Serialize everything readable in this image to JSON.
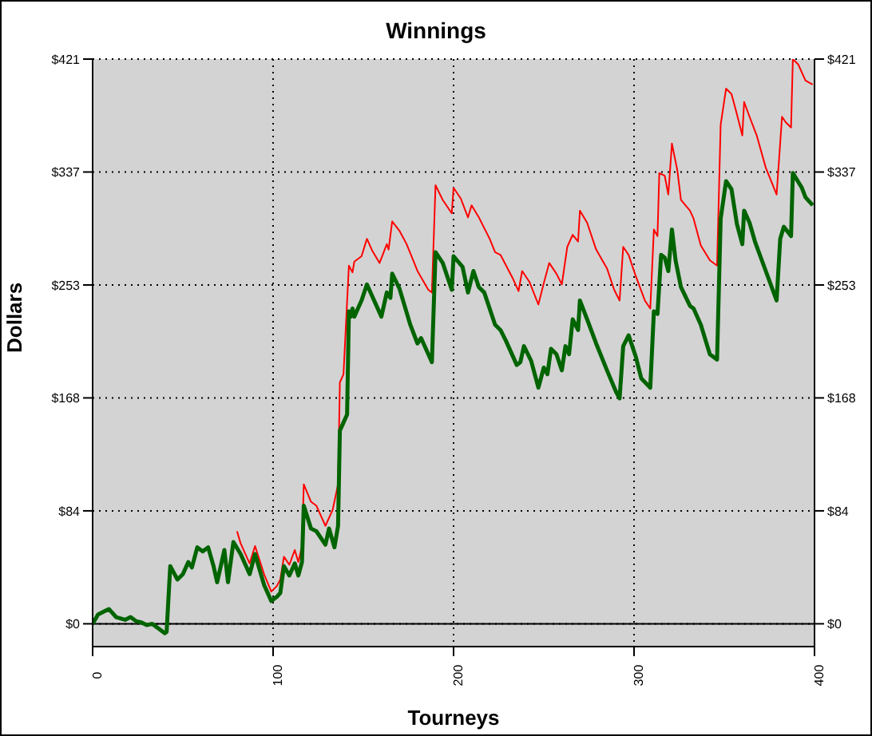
{
  "chart_data": {
    "type": "line",
    "title": "Winnings",
    "xlabel": "Tourneys",
    "ylabel": "Dollars",
    "xlim": [
      0,
      400
    ],
    "xticks": [
      0,
      100,
      200,
      300,
      400
    ],
    "ylim": [
      -17,
      421
    ],
    "yticks": [
      {
        "value": 0,
        "label": "$0"
      },
      {
        "value": 84.2,
        "label": "$84"
      },
      {
        "value": 168.4,
        "label": "$168"
      },
      {
        "value": 252.6,
        "label": "$253"
      },
      {
        "value": 336.8,
        "label": "$337"
      },
      {
        "value": 421,
        "label": "$421"
      }
    ],
    "y2lim": [
      -17,
      421
    ],
    "y2ticks": [
      {
        "value": 0,
        "label": "$0"
      },
      {
        "value": 84.2,
        "label": "$84"
      },
      {
        "value": 168.4,
        "label": "$168"
      },
      {
        "value": 252.6,
        "label": "$253"
      },
      {
        "value": 336.8,
        "label": "$337"
      },
      {
        "value": 421,
        "label": "$421"
      }
    ],
    "grid": true,
    "line_style": "solid",
    "marker": "none",
    "ref_lines": [
      {
        "axis": "y",
        "value": 0,
        "color": "#000000",
        "line_style": "solid"
      }
    ],
    "series": [
      {
        "color": "#ff0000",
        "x": [
          80,
          82,
          87,
          90,
          95,
          99,
          102,
          104,
          106,
          109,
          112,
          114,
          116,
          117,
          121,
          124,
          129,
          133,
          136,
          137,
          139,
          142,
          144,
          145,
          149,
          152,
          155,
          159,
          163,
          164,
          166,
          170,
          174,
          180,
          186,
          188,
          190,
          194,
          199,
          200,
          204,
          208,
          210,
          214,
          220,
          223,
          226,
          233,
          236,
          238,
          242,
          247,
          250,
          253,
          257,
          260,
          263,
          266,
          269,
          270,
          274,
          279,
          285,
          289,
          292,
          294,
          297,
          301,
          306,
          309,
          311,
          313,
          314,
          317,
          319,
          321,
          324,
          326,
          331,
          333,
          337,
          342,
          346,
          348,
          351,
          354,
          357,
          360,
          361,
          364,
          368,
          373,
          379,
          382,
          384,
          387,
          388,
          391,
          395,
          399
        ],
        "values": [
          69,
          60,
          45,
          58,
          37,
          24,
          28,
          33,
          50,
          44,
          55,
          46,
          58,
          104,
          91,
          88,
          73,
          85,
          104,
          180,
          186,
          267,
          262,
          270,
          274,
          287,
          278,
          269,
          283,
          279,
          300,
          293,
          283,
          263,
          249,
          247,
          327,
          316,
          306,
          325,
          317,
          303,
          312,
          303,
          287,
          277,
          275,
          257,
          248,
          263,
          255,
          238,
          254,
          269,
          261,
          253,
          281,
          290,
          285,
          308,
          299,
          279,
          265,
          249,
          241,
          281,
          275,
          259,
          241,
          235,
          294,
          289,
          336,
          334,
          320,
          358,
          338,
          316,
          308,
          302,
          282,
          271,
          267,
          372,
          399,
          395,
          380,
          364,
          389,
          378,
          364,
          340,
          320,
          378,
          374,
          370,
          421,
          417,
          405,
          402
        ]
      },
      {
        "color": "#006400",
        "x": [
          0,
          3,
          9,
          13,
          18,
          21,
          24,
          27,
          30,
          33,
          36,
          40,
          41,
          43,
          47,
          50,
          53,
          55,
          58,
          61,
          64,
          67,
          69,
          73,
          75,
          78,
          82,
          87,
          90,
          95,
          99,
          102,
          104,
          106,
          109,
          112,
          114,
          116,
          117,
          121,
          124,
          129,
          131,
          134,
          136,
          137,
          139,
          141,
          142,
          143,
          144,
          145,
          149,
          152,
          155,
          160,
          163,
          165,
          166,
          170,
          176,
          180,
          182,
          188,
          190,
          194,
          199,
          200,
          205,
          208,
          211,
          214,
          217,
          223,
          226,
          229,
          235,
          237,
          239,
          243,
          247,
          250,
          252,
          254,
          257,
          260,
          262,
          264,
          266,
          269,
          270,
          274,
          279,
          285,
          290,
          292,
          294,
          297,
          301,
          304,
          309,
          311,
          313,
          315,
          317,
          319,
          321,
          323,
          326,
          331,
          333,
          337,
          342,
          346,
          348,
          351,
          354,
          357,
          360,
          361,
          364,
          367,
          373,
          379,
          381,
          383,
          387,
          388,
          393,
          395,
          399
        ],
        "values": [
          0,
          7,
          11,
          5,
          3,
          5,
          2,
          1,
          -1,
          0,
          -3,
          -7,
          -6,
          43,
          33,
          37,
          46,
          42,
          57,
          54,
          57,
          43,
          31,
          55,
          31,
          61,
          52,
          37,
          52,
          29,
          17,
          20,
          23,
          43,
          36,
          45,
          36,
          46,
          88,
          71,
          69,
          59,
          71,
          57,
          73,
          144,
          150,
          156,
          233,
          229,
          235,
          229,
          241,
          253,
          244,
          229,
          247,
          243,
          261,
          250,
          223,
          209,
          213,
          195,
          277,
          269,
          249,
          274,
          266,
          247,
          263,
          251,
          247,
          223,
          219,
          211,
          193,
          195,
          207,
          196,
          176,
          191,
          186,
          205,
          201,
          189,
          207,
          201,
          227,
          219,
          241,
          227,
          209,
          189,
          173,
          168,
          207,
          215,
          199,
          183,
          176,
          233,
          231,
          275,
          273,
          263,
          294,
          271,
          251,
          237,
          235,
          223,
          201,
          197,
          302,
          330,
          324,
          298,
          283,
          308,
          299,
          285,
          263,
          241,
          287,
          296,
          289,
          336,
          325,
          318,
          312
        ]
      }
    ]
  }
}
